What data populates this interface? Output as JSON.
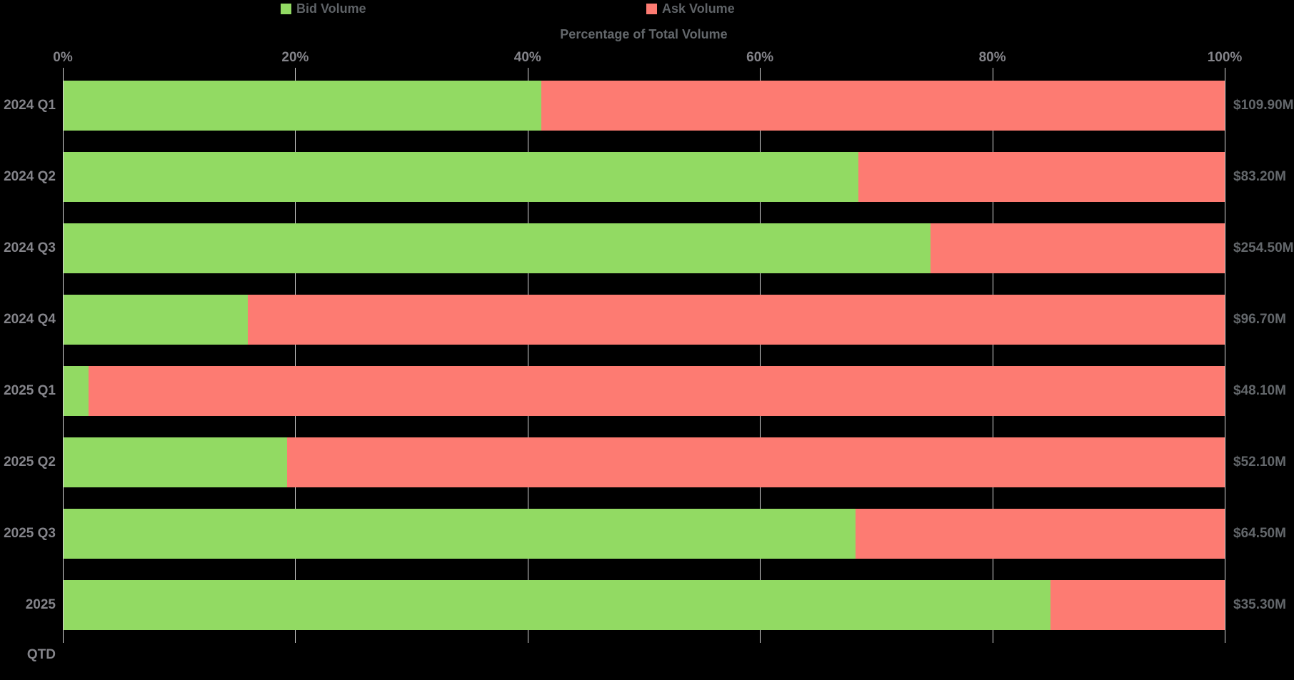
{
  "chart_data": {
    "type": "bar",
    "orientation": "horizontal",
    "stacked": true,
    "normalized_to_100pct": true,
    "xlabel": "Percentage of Total Volume",
    "x_ticks": [
      "0%",
      "20%",
      "40%",
      "60%",
      "80%",
      "100%"
    ],
    "xlim": [
      0,
      100
    ],
    "grid": true,
    "legend_position": "top",
    "categories": [
      "2024 Q1",
      "2024 Q2",
      "2024 Q3",
      "2024 Q4",
      "2025 Q1",
      "2025 Q2",
      "2025 Q3",
      "2025 QTD"
    ],
    "series": [
      {
        "name": "Bid Volume",
        "color": "#92da63",
        "values_pct": [
          41.2,
          68.5,
          74.7,
          15.9,
          2.2,
          19.3,
          68.2,
          85.0
        ]
      },
      {
        "name": "Ask Volume",
        "color": "#fd7b72",
        "values_pct": [
          58.8,
          31.5,
          25.3,
          84.1,
          97.8,
          80.7,
          31.8,
          15.0
        ]
      }
    ],
    "total_volume_labels": [
      "$109.90M",
      "$83.20M",
      "$254.50M",
      "$96.70M",
      "$48.10M",
      "$52.10M",
      "$64.50M",
      "$35.30M"
    ]
  },
  "colors": {
    "background": "#000000",
    "grid": "#d9d9d9",
    "axis": "#d9d9d9",
    "tick_label": "#84848a",
    "category_label": "#84848a",
    "value_label": "#63676b",
    "legend_text": "#5f6367",
    "axis_title": "#63676b"
  }
}
